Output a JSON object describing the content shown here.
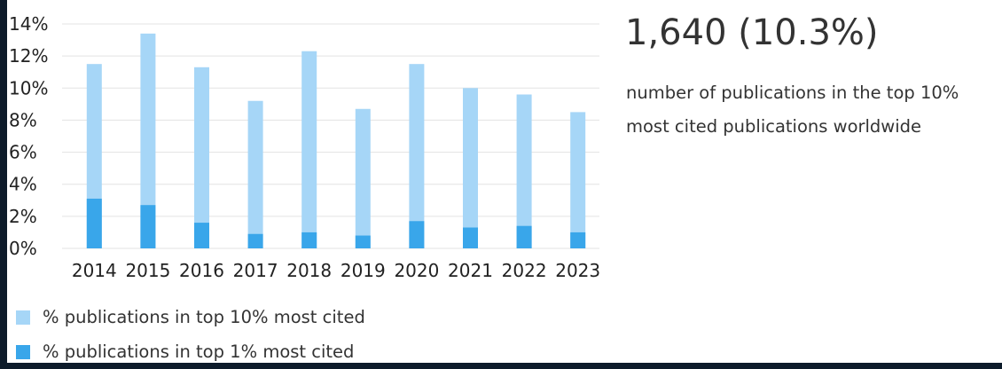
{
  "stat": {
    "value": "1,640 (10.3%)",
    "description_line1": "number of publications in the top 10%",
    "description_line2": "most cited publications worldwide"
  },
  "colors": {
    "top10": "#a6d6f7",
    "top1": "#39a6ea",
    "grid": "#e3e3e3"
  },
  "chart_data": {
    "type": "bar",
    "stacked": false,
    "overlapping": true,
    "categories": [
      "2014",
      "2015",
      "2016",
      "2017",
      "2018",
      "2019",
      "2020",
      "2021",
      "2022",
      "2023"
    ],
    "series": [
      {
        "name": "% publications in top 10% most cited",
        "values": [
          11.5,
          13.4,
          11.3,
          9.2,
          12.3,
          8.7,
          11.5,
          10.0,
          9.6,
          8.5
        ]
      },
      {
        "name": "% publications in top 1% most cited",
        "values": [
          3.1,
          2.7,
          1.6,
          0.9,
          1.0,
          0.8,
          1.7,
          1.3,
          1.4,
          1.0
        ]
      }
    ],
    "ylim": [
      0,
      14
    ],
    "yticks": [
      "0%",
      "2%",
      "4%",
      "6%",
      "8%",
      "10%",
      "12%",
      "14%"
    ],
    "grid": true,
    "legend": "bottom-left"
  }
}
